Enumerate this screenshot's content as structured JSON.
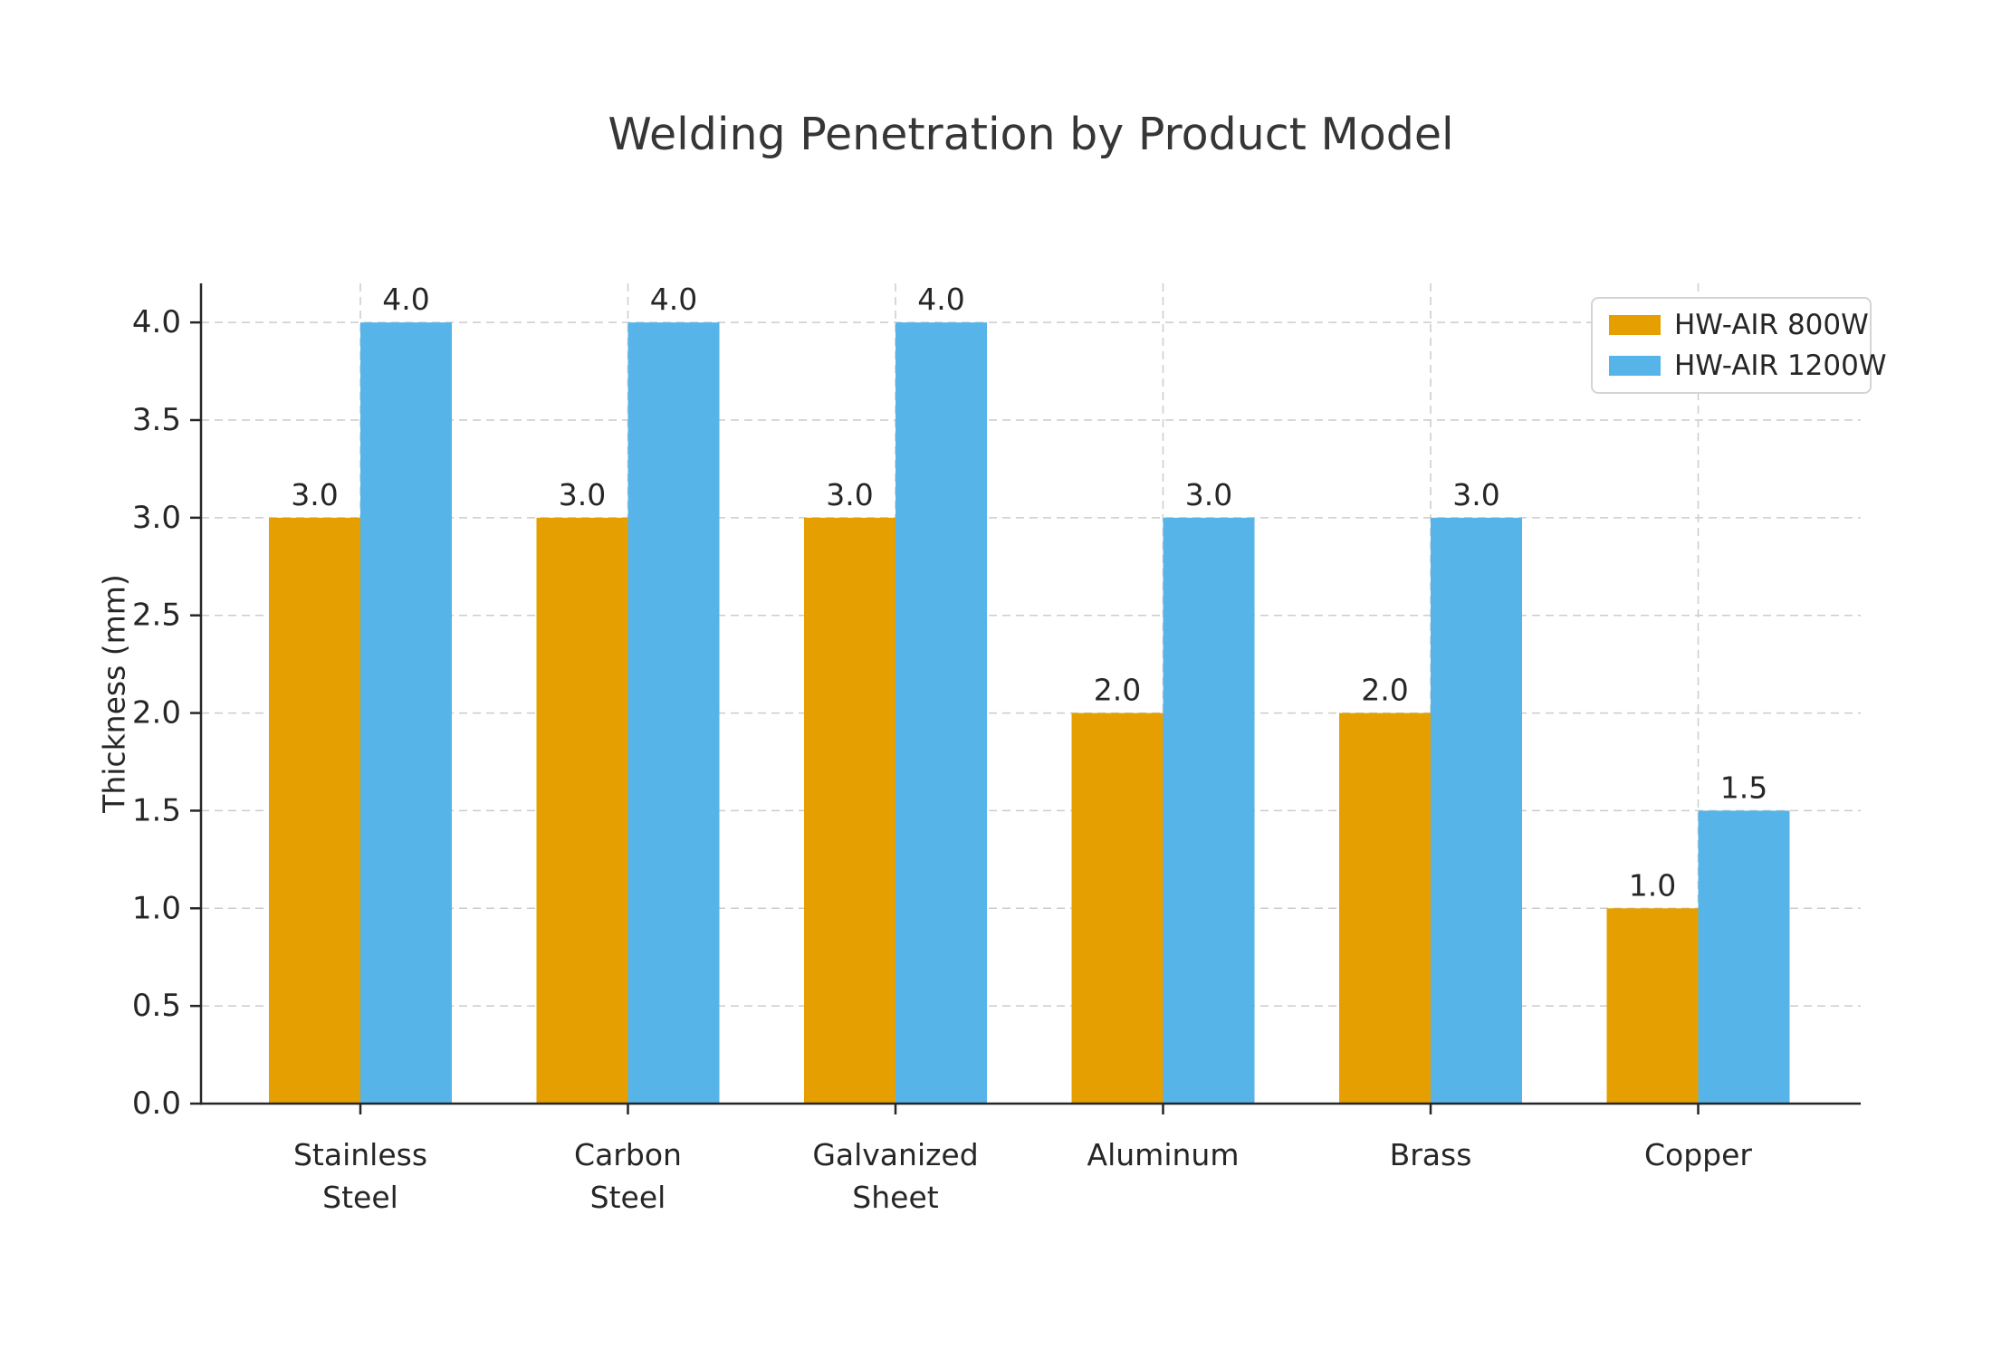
{
  "chart_data": {
    "type": "bar",
    "title": "Welding Penetration by Product Model",
    "xlabel": "",
    "ylabel": "Thickness (mm)",
    "categories": [
      "Stainless\nSteel",
      "Carbon\nSteel",
      "Galvanized\nSheet",
      "Aluminum",
      "Brass",
      "Copper"
    ],
    "series": [
      {
        "name": "HW-AIR 800W",
        "color": "#E69F00",
        "values": [
          3.0,
          3.0,
          3.0,
          2.0,
          2.0,
          1.0
        ]
      },
      {
        "name": "HW-AIR 1200W",
        "color": "#56B4E9",
        "values": [
          4.0,
          4.0,
          4.0,
          3.0,
          3.0,
          1.5
        ]
      }
    ],
    "y_ticks": [
      0.0,
      0.5,
      1.0,
      1.5,
      2.0,
      2.5,
      3.0,
      3.5,
      4.0
    ],
    "ylim": [
      0,
      4.2
    ],
    "value_labels": true,
    "grid": "dashed horizontal at y-ticks, dashed vertical at category centers",
    "legend_position": "upper right",
    "colors": {
      "background": "#ffffff",
      "axis": "#262626",
      "text": "#262626",
      "title": "#363636",
      "grid": "#cccccc",
      "legend_border": "#d4d4d4"
    }
  }
}
